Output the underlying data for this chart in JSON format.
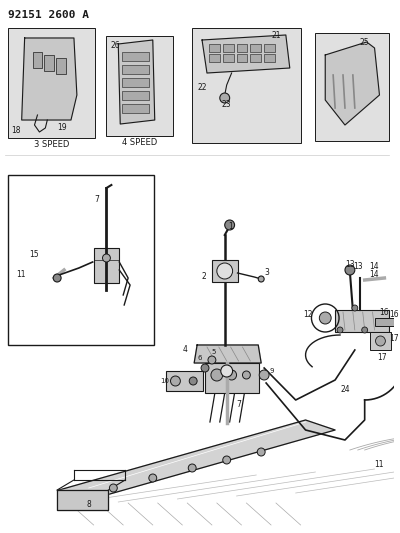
{
  "title": "92151 2600 A",
  "bg_color": "#ffffff",
  "lc": "#1a1a1a",
  "fig_w": 4.0,
  "fig_h": 5.33,
  "dpi": 100,
  "gray1": "#c8c8c8",
  "gray2": "#e0e0e0",
  "gray3": "#aaaaaa",
  "gray4": "#888888"
}
